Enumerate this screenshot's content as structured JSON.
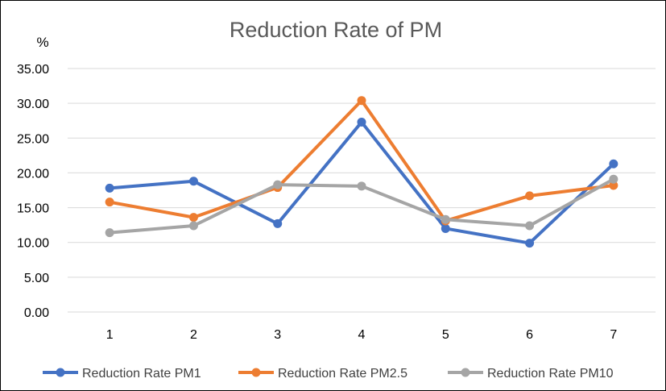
{
  "chart_data": {
    "type": "line",
    "title": "Reduction Rate of PM",
    "ylabel": "%",
    "xlabel": "",
    "categories": [
      "1",
      "2",
      "3",
      "4",
      "5",
      "6",
      "7"
    ],
    "ylim": [
      0,
      35
    ],
    "yticks": [
      "0.00",
      "5.00",
      "10.00",
      "15.00",
      "20.00",
      "25.00",
      "30.00",
      "35.00"
    ],
    "grid": true,
    "legend_position": "bottom",
    "series": [
      {
        "name": "Reduction Rate PM1",
        "color": "#4472c4",
        "values": [
          17.8,
          18.8,
          12.7,
          27.3,
          12.0,
          9.9,
          21.3
        ]
      },
      {
        "name": "Reduction Rate PM2.5",
        "color": "#ed7d31",
        "values": [
          15.8,
          13.6,
          17.9,
          30.4,
          13.1,
          16.7,
          18.2
        ]
      },
      {
        "name": "Reduction Rate PM10",
        "color": "#a5a5a5",
        "values": [
          11.4,
          12.4,
          18.3,
          18.1,
          13.3,
          12.4,
          19.1
        ]
      }
    ]
  }
}
